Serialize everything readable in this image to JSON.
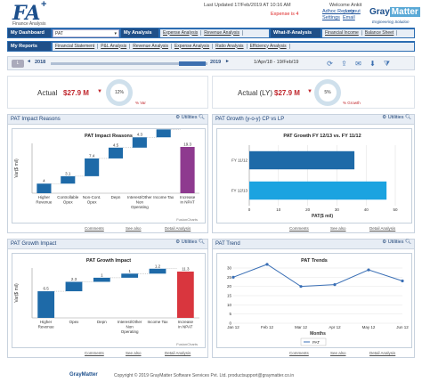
{
  "header": {
    "logo_text": "FA",
    "logo_plus": "+",
    "logo_sub": "Finance Analysis",
    "last_updated": "Last Updated 17/Feb/2019 AT 10:16 AM",
    "welcome": "Welcome Ankit",
    "expense": "Expense is 4",
    "adhoc": "Adhoc Reports",
    "logout": "Logout",
    "settings": "Settings",
    "email": "Email",
    "brand_gray": "Gray",
    "brand_matter": "Matter",
    "brand_tag": "Engineering Solution"
  },
  "nav1": {
    "dashboard": "My Dashboard",
    "dashboard_sel": "PAT",
    "analysis": "My Analysis",
    "analysis_links": [
      "Expense Analysis",
      "Revenue Analysis"
    ],
    "whatif": "What-If-Analysis",
    "whatif_links": [
      "Financial Income",
      "Balance Sheet"
    ]
  },
  "nav2": {
    "reports": "My Reports",
    "links": [
      "Financial Statement",
      "P&L Analysis",
      "Revenue Analysis",
      "Expense Analysis",
      "Ratio Analysis",
      "Efficiency Analysis"
    ]
  },
  "timeline": {
    "left_btn": "L",
    "year_start": "2018",
    "year_end": "2019",
    "range": "1/Apr/18 - 19/Feb/19"
  },
  "kpi": {
    "actual_label": "Actual",
    "actual_value": "$27.9 M",
    "actual_pct": "12%",
    "actual_sub": "% Var",
    "ly_label": "Actual (LY)",
    "ly_value": "$27.9 M",
    "ly_pct": "5%",
    "ly_sub": "% Growth"
  },
  "panels": {
    "p1": {
      "title": "PAT Impact Reasons",
      "utilities": "Utilities",
      "chart_title": "PAT Impact Reasons",
      "foot_left": "Comments",
      "foot_mid": "See also",
      "foot_right": "Detail Analysis",
      "credit": "FusionCharts"
    },
    "p2": {
      "title": "PAT Growth (y-o-y) CP vs LP",
      "utilities": "Utilities",
      "chart_title": "PAT Growth FY 12/13 vs. FY 11/12",
      "foot_left": "Comments",
      "foot_mid": "See also",
      "foot_right": "Detail Analysis"
    },
    "p3": {
      "title": "PAT Growth Impact",
      "utilities": "Utilities",
      "chart_title": "PAT Growth Impact",
      "foot_left": "Comments",
      "foot_mid": "See also",
      "foot_right": "Detail Analysis",
      "credit": "FusionCharts"
    },
    "p4": {
      "title": "PAT Trend",
      "utilities": "Utilities",
      "chart_title": "PAT Trends",
      "foot_left": "Comments",
      "foot_mid": "See also",
      "foot_right": "Detail Analysis"
    }
  },
  "footer": {
    "brand": "GrayMatter",
    "text": "Copyright © 2019 GrayMatter Software Services Pvt. Ltd. productsupport@graymatter.co.in"
  },
  "chart_data": [
    {
      "type": "bar",
      "title": "PAT Impact Reasons",
      "ylabel": "Var($ mil)",
      "categories": [
        "Higher Revenue",
        "Controllable Opex",
        "Non-Cont. Opex",
        "Depn",
        "Interest/Other Non Operating",
        "Income Tax",
        "Increase in NPAT"
      ],
      "values": [
        4,
        3.1,
        7.4,
        4.5,
        4.3,
        3.3,
        19.3
      ],
      "colors": [
        "#1e6aa8",
        "#1e6aa8",
        "#1e6aa8",
        "#1e6aa8",
        "#1e6aa8",
        "#1e6aa8",
        "#8e3a8f"
      ]
    },
    {
      "type": "bar",
      "title": "PAT Growth FY 12/13 vs. FY 11/12",
      "xlabel": "PAT($ mil)",
      "orientation": "horizontal",
      "categories": [
        "FY 11/12",
        "FY 12/13"
      ],
      "values": [
        36,
        47
      ],
      "xlim": [
        0,
        50
      ],
      "xticks": [
        0,
        10,
        20,
        30,
        40,
        50
      ],
      "colors": [
        "#1e6aa8",
        "#1ba3e0"
      ]
    },
    {
      "type": "bar",
      "title": "PAT Growth Impact",
      "ylabel": "Var($ mil)",
      "categories": [
        "Higher Revenue",
        "Opex",
        "Depn",
        "Interest/Other Non Operating",
        "Income Tax",
        "Increase in NPAT"
      ],
      "values": [
        6.5,
        2.3,
        1.0,
        1.0,
        1.2,
        11.3
      ],
      "colors": [
        "#1e6aa8",
        "#1e6aa8",
        "#1e6aa8",
        "#1e6aa8",
        "#1e6aa8",
        "#d9363e"
      ]
    },
    {
      "type": "line",
      "title": "PAT Trends",
      "xlabel": "Months",
      "categories": [
        "Jan 12",
        "Feb 12",
        "Mar 12",
        "Apr 12",
        "May 12",
        "Jun 12"
      ],
      "values": [
        25,
        32,
        20,
        21,
        29,
        23
      ],
      "ylim": [
        0,
        30
      ],
      "yticks": [
        0,
        5,
        10,
        15,
        20,
        25,
        30
      ],
      "series_name": "PAT",
      "color": "#3a6fb5"
    }
  ]
}
